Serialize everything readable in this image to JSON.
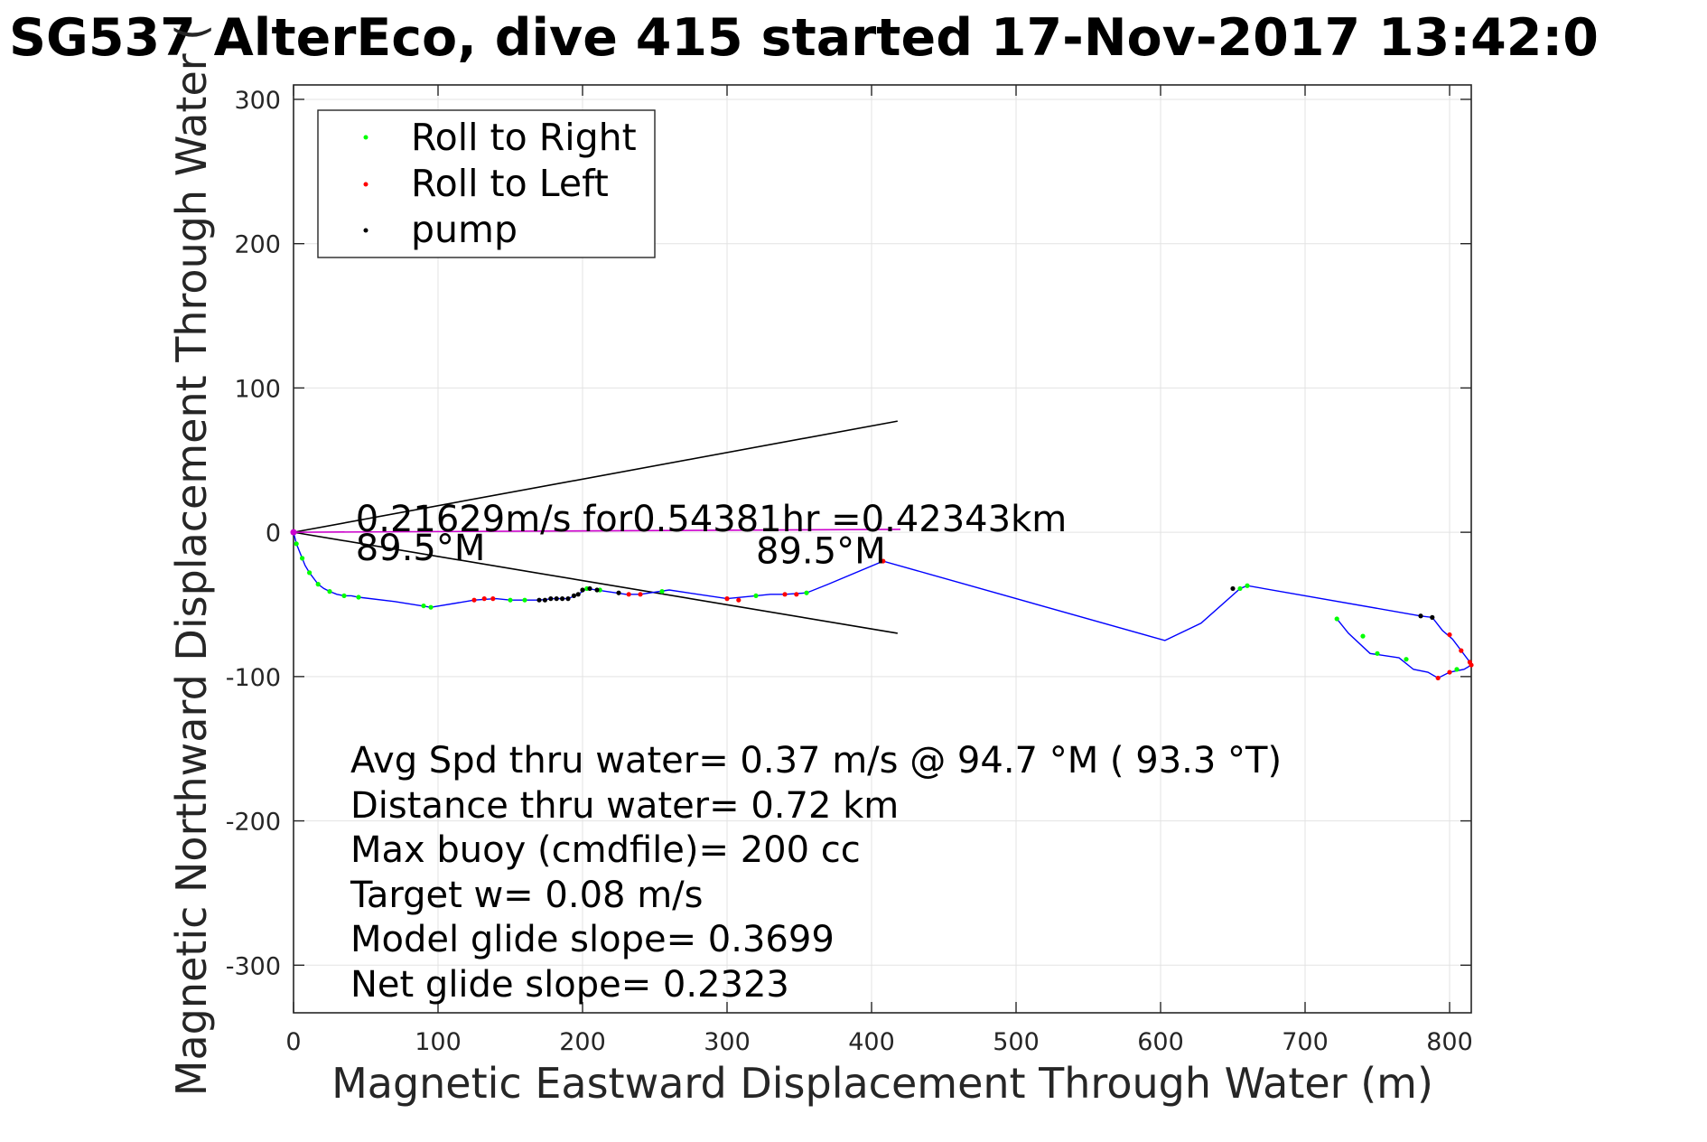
{
  "chart_data": {
    "type": "line",
    "title": "SG537 AlterEco, dive 415 started 17-Nov-2017 13:42:0",
    "xlabel": "Magnetic Eastward Displacement Through Water (m)",
    "ylabel": "Magnetic Northward Displacement Through Water (",
    "xlim": [
      0,
      815
    ],
    "ylim": [
      -333,
      310
    ],
    "x_ticks": [
      0,
      100,
      200,
      300,
      400,
      500,
      600,
      700,
      800
    ],
    "y_ticks": [
      300,
      200,
      100,
      0,
      -100,
      -200,
      -300
    ],
    "grid": true,
    "legend": {
      "placement": "top-left",
      "entries": [
        {
          "label": "Roll to Right",
          "color": "#00ff00"
        },
        {
          "label": "Roll to Left",
          "color": "#ff0000"
        },
        {
          "label": "pump",
          "color": "#000000"
        }
      ]
    },
    "track": {
      "color": "#0000ff",
      "points": [
        [
          0,
          0
        ],
        [
          1,
          -4
        ],
        [
          2,
          -8
        ],
        [
          4,
          -13
        ],
        [
          6,
          -18
        ],
        [
          8,
          -23
        ],
        [
          11,
          -28
        ],
        [
          14,
          -32
        ],
        [
          17,
          -36
        ],
        [
          21,
          -39
        ],
        [
          25,
          -41
        ],
        [
          30,
          -43
        ],
        [
          35,
          -44
        ],
        [
          40,
          -44
        ],
        [
          45,
          -45
        ],
        [
          70,
          -48
        ],
        [
          95,
          -52
        ],
        [
          125,
          -47
        ],
        [
          140,
          -46
        ],
        [
          150,
          -47
        ],
        [
          170,
          -47
        ],
        [
          180,
          -46
        ],
        [
          190,
          -46
        ],
        [
          197,
          -43
        ],
        [
          203,
          -39
        ],
        [
          210,
          -40
        ],
        [
          230,
          -43
        ],
        [
          240,
          -43
        ],
        [
          260,
          -40
        ],
        [
          300,
          -46
        ],
        [
          320,
          -44
        ],
        [
          330,
          -43
        ],
        [
          340,
          -43
        ],
        [
          355,
          -42
        ],
        [
          370,
          -36
        ],
        [
          408,
          -20
        ],
        [
          603,
          -75
        ],
        [
          628,
          -63
        ],
        [
          655,
          -39
        ],
        [
          660,
          -37
        ],
        [
          780,
          -58
        ],
        [
          788,
          -59
        ],
        [
          795,
          -68
        ],
        [
          802,
          -74
        ],
        [
          808,
          -82
        ],
        [
          814,
          -90
        ],
        [
          815,
          -92
        ],
        [
          810,
          -95
        ],
        [
          800,
          -97
        ],
        [
          792,
          -101
        ],
        [
          785,
          -97
        ],
        [
          775,
          -95
        ],
        [
          765,
          -87
        ],
        [
          745,
          -84
        ],
        [
          730,
          -70
        ],
        [
          722,
          -60
        ]
      ]
    },
    "roll_right_points": [
      [
        2,
        -8
      ],
      [
        6,
        -18
      ],
      [
        11,
        -28
      ],
      [
        17,
        -36
      ],
      [
        25,
        -41
      ],
      [
        35,
        -44
      ],
      [
        45,
        -45
      ],
      [
        90,
        -51
      ],
      [
        95,
        -52
      ],
      [
        150,
        -47
      ],
      [
        160,
        -47
      ],
      [
        203,
        -39
      ],
      [
        212,
        -40
      ],
      [
        255,
        -41
      ],
      [
        320,
        -44
      ],
      [
        355,
        -42
      ],
      [
        655,
        -39
      ],
      [
        660,
        -37
      ],
      [
        722,
        -60
      ],
      [
        740,
        -72
      ],
      [
        750,
        -84
      ],
      [
        770,
        -88
      ],
      [
        805,
        -95
      ]
    ],
    "roll_left_points": [
      [
        125,
        -47
      ],
      [
        132,
        -46
      ],
      [
        138,
        -46
      ],
      [
        232,
        -43
      ],
      [
        240,
        -43
      ],
      [
        300,
        -46
      ],
      [
        308,
        -47
      ],
      [
        340,
        -43
      ],
      [
        348,
        -43
      ],
      [
        408,
        -20
      ],
      [
        800,
        -71
      ],
      [
        808,
        -82
      ],
      [
        814,
        -90
      ],
      [
        815,
        -92
      ],
      [
        792,
        -101
      ],
      [
        800,
        -97
      ]
    ],
    "pump_points": [
      [
        170,
        -47
      ],
      [
        174,
        -47
      ],
      [
        178,
        -46
      ],
      [
        182,
        -46
      ],
      [
        186,
        -46
      ],
      [
        190,
        -46
      ],
      [
        194,
        -44
      ],
      [
        197,
        -43
      ],
      [
        200,
        -40
      ],
      [
        205,
        -39
      ],
      [
        210,
        -40
      ],
      [
        225,
        -42
      ],
      [
        650,
        -39
      ],
      [
        780,
        -58
      ],
      [
        788,
        -59
      ]
    ],
    "current_line": {
      "color": "#cc00cc",
      "from": [
        0,
        0
      ],
      "to": [
        420,
        2
      ],
      "label": "0.21629m/s for0.54381hr =0.42343km"
    },
    "heading_lines": {
      "color": "#000000",
      "lines": [
        {
          "from": [
            0,
            0
          ],
          "to": [
            418,
            77
          ]
        },
        {
          "from": [
            0,
            0
          ],
          "to": [
            418,
            -70
          ]
        }
      ],
      "labels": [
        {
          "text": "89.5°M",
          "x": 43,
          "y": -5
        },
        {
          "text": "89.5°M",
          "x": 320,
          "y": -7
        }
      ]
    },
    "stats": [
      "Avg Spd thru water=  0.37 m/s @  94.7 °M ( 93.3 °T)",
      "Distance thru water=  0.72 km",
      "Max buoy (cmdfile)= 200 cc",
      "Target w= 0.08 m/s",
      "Model glide slope= 0.3699",
      "Net glide slope= 0.2323"
    ]
  }
}
